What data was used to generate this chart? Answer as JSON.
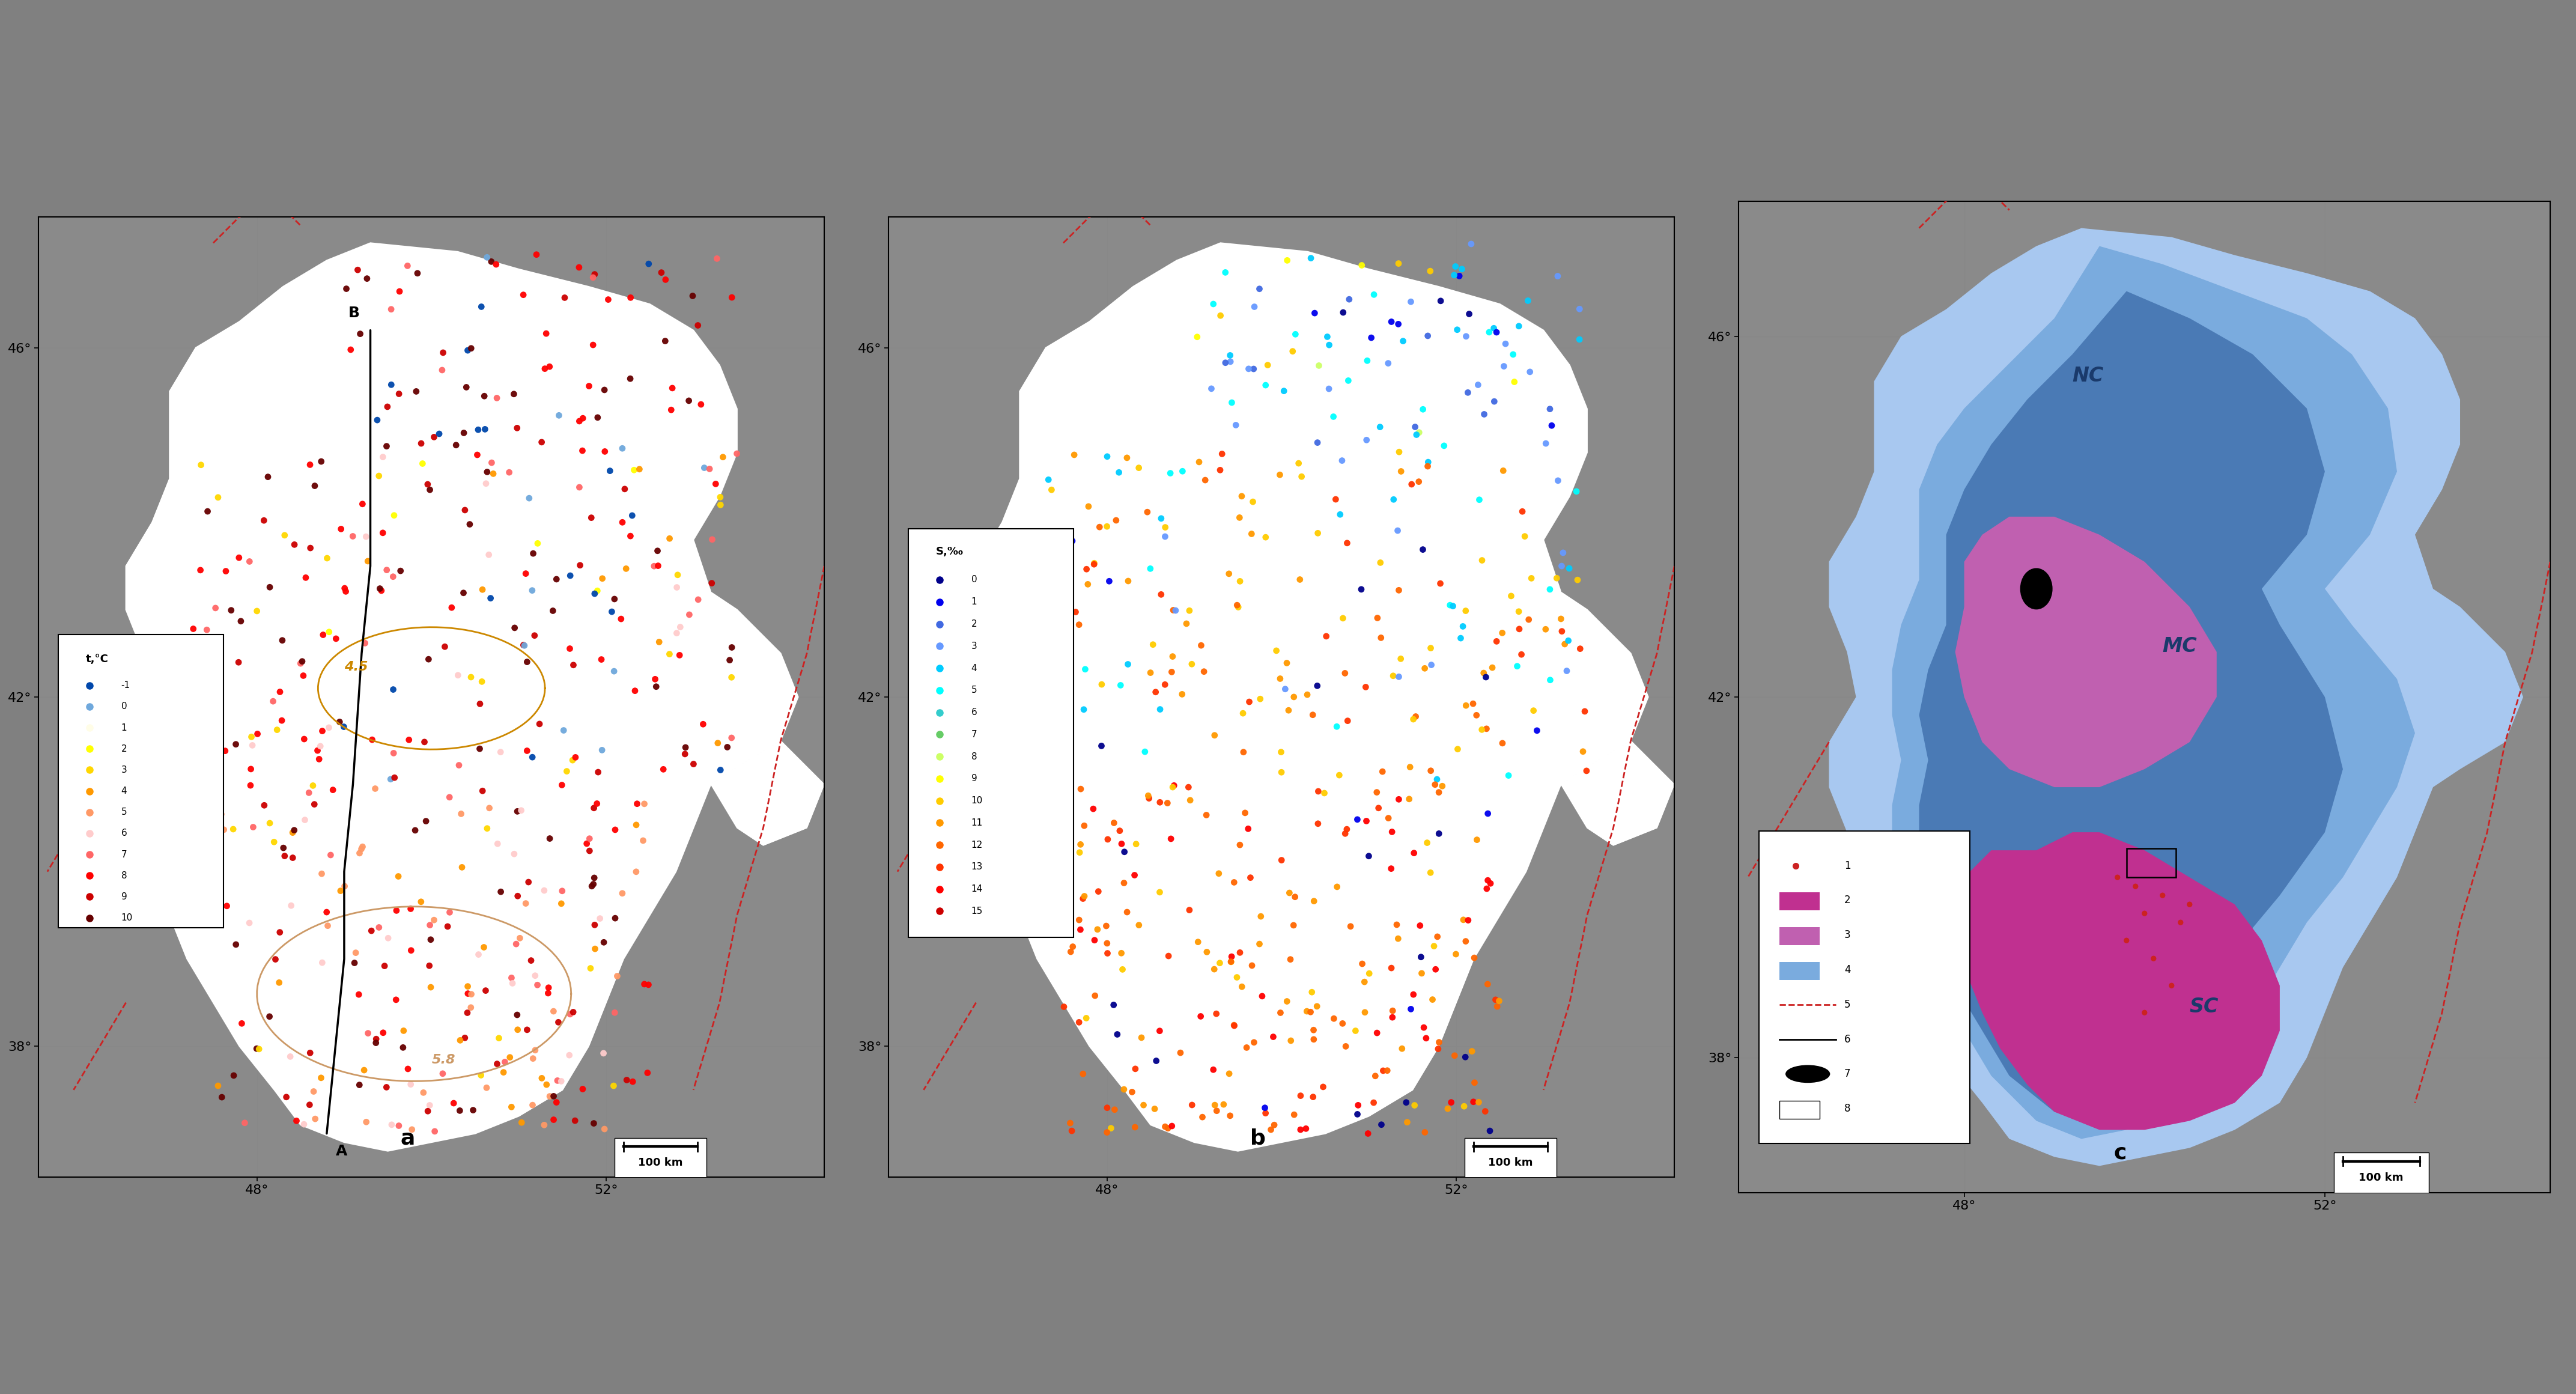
{
  "figure_width": 42.88,
  "figure_height": 23.2,
  "bg_color": "#a0a0a0",
  "panel_a_label": "a",
  "panel_b_label": "b",
  "panel_c_label": "c",
  "temp_legend_title": "t,°C",
  "sal_legend_title": "S,‰",
  "temp_colors": [
    "#0047ab",
    "#6fa8dc",
    "#fffde7",
    "#ffff00",
    "#ffd700",
    "#ff9900",
    "#ff9966",
    "#ffcccc",
    "#ff6666",
    "#ff0000",
    "#cc0000",
    "#660000"
  ],
  "temp_labels": [
    "-1",
    "0",
    "1",
    "2",
    "3",
    "4",
    "5",
    "6",
    "7",
    "8",
    "9",
    "10"
  ],
  "sal_colors": [
    "#00008b",
    "#0000ee",
    "#4169e1",
    "#6699ff",
    "#00ccff",
    "#00ffff",
    "#33cccc",
    "#66cc66",
    "#ccff66",
    "#ffff00",
    "#ffcc00",
    "#ff9900",
    "#ff6600",
    "#ff3300",
    "#ff0000"
  ],
  "sal_labels": [
    "0",
    "1",
    "2",
    "3",
    "4",
    "5",
    "6",
    "7",
    "8",
    "9",
    "10",
    "11",
    "12",
    "13",
    "14",
    "15"
  ],
  "contour_45_color": "#cc8800",
  "contour_58_color": "#cc9966",
  "dashed_border_color": "#cc2222",
  "grid_color": "#888888",
  "ghsz_light_blue": "#a8c8f0",
  "ghsz_mid_blue": "#7aabde",
  "ghsz_dark_blue": "#4a7ab5",
  "ghsz_purple": "#c060b0",
  "ghsz_magenta": "#c03090",
  "nc_label": "NC",
  "mc_label": "MC",
  "sc_label": "SC",
  "label_color": "#1a3a6b",
  "lon_ticks": [
    48,
    52
  ],
  "lat_ticks": [
    38,
    42,
    46
  ],
  "xlim": [
    45.5,
    54.5
  ],
  "ylim": [
    36.5,
    47.5
  ]
}
